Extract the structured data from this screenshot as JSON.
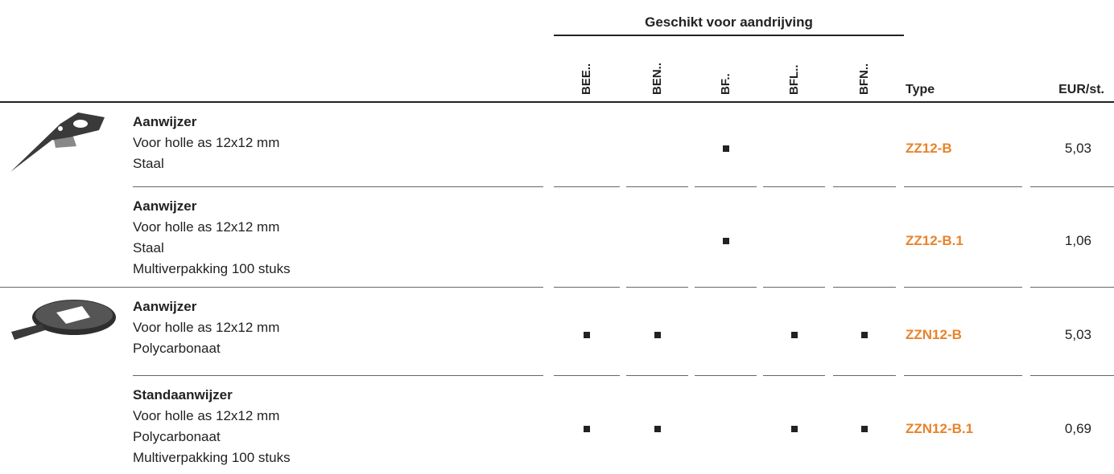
{
  "header": {
    "group_title": "Geschikt voor aandrijving",
    "drives": [
      "BEE..",
      "BEN..",
      "BF..",
      "BFL..",
      "BFN.."
    ],
    "type": "Type",
    "price": "EUR/st."
  },
  "rows": [
    {
      "title": "Aanwijzer",
      "lines": [
        "Voor holle as 12x12 mm",
        "Staal"
      ],
      "marks": [
        false,
        false,
        true,
        false,
        false
      ],
      "type": "ZZ12-B",
      "price": "5,03"
    },
    {
      "title": "Aanwijzer",
      "lines": [
        "Voor holle as 12x12 mm",
        "Staal",
        "Multiverpakking 100 stuks"
      ],
      "marks": [
        false,
        false,
        true,
        false,
        false
      ],
      "type": "ZZ12-B.1",
      "price": "1,06"
    },
    {
      "title": "Aanwijzer",
      "lines": [
        "Voor holle as 12x12 mm",
        "Polycarbonaat"
      ],
      "marks": [
        true,
        true,
        false,
        true,
        true
      ],
      "type": "ZZN12-B",
      "price": "5,03"
    },
    {
      "title": "Standaanwijzer",
      "lines": [
        "Voor holle as 12x12 mm",
        "Polycarbonaat",
        "Multiverpakking 100 stuks"
      ],
      "marks": [
        true,
        true,
        false,
        true,
        true
      ],
      "type": "ZZN12-B.1",
      "price": "0,69"
    }
  ]
}
